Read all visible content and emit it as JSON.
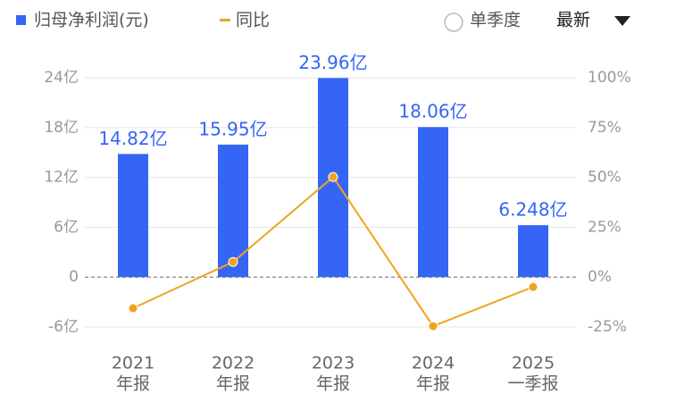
{
  "chart_data": {
    "type": "bar_line",
    "categories": [
      [
        "2021",
        "年报"
      ],
      [
        "2022",
        "年报"
      ],
      [
        "2023",
        "年报"
      ],
      [
        "2024",
        "年报"
      ],
      [
        "2025",
        "一季报"
      ]
    ],
    "series": [
      {
        "name": "归母净利润(元)",
        "color": "#3565f5",
        "type": "bar",
        "values": [
          14.82,
          15.95,
          23.96,
          18.06,
          6.248
        ],
        "value_labels": [
          "14.82亿",
          "15.95亿",
          "23.96亿",
          "18.06亿",
          "6.248亿"
        ]
      },
      {
        "name": "同比",
        "color": "#f0a320",
        "type": "line",
        "axis": "y2",
        "values": [
          -15.6,
          7.6,
          50.2,
          -24.6,
          -4.9
        ]
      }
    ],
    "ylim": [
      -6,
      24
    ],
    "yticks": [
      {
        "value": -6,
        "label": "-6亿"
      },
      0,
      {
        "value": 6,
        "label": "6亿"
      },
      {
        "value": 12,
        "label": "12亿"
      },
      {
        "value": 18,
        "label": "18亿"
      },
      {
        "value": 24,
        "label": "24亿"
      }
    ],
    "y2lim": [
      -25,
      100
    ],
    "y2ticks": [
      {
        "value": -25,
        "label": "-25%"
      },
      {
        "value": 0,
        "label": "0%"
      },
      {
        "value": 25,
        "label": "25%"
      },
      {
        "value": 50,
        "label": "50%"
      },
      {
        "value": 75,
        "label": "75%"
      },
      {
        "value": 100,
        "label": "100%"
      }
    ],
    "grid": true,
    "controls": {
      "period_option": "单季度",
      "sort": "最新"
    }
  }
}
